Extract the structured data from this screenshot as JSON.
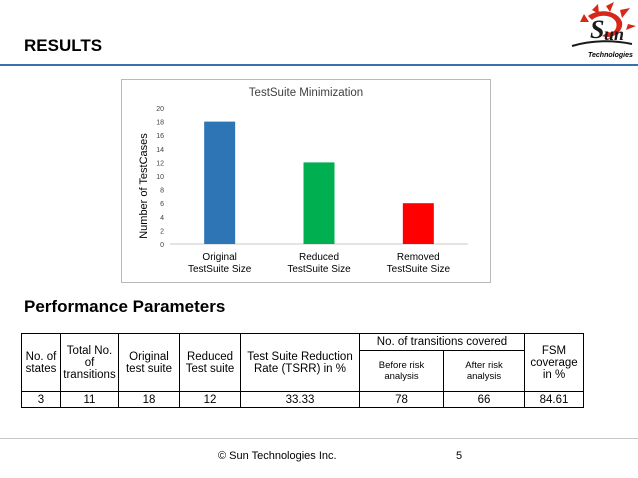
{
  "slide": {
    "title": "RESULTS",
    "section_title": "Performance Parameters",
    "logo_text": "Technologies",
    "footer": "© Sun Technologies Inc.",
    "page_number": "5"
  },
  "chart_data": {
    "type": "bar",
    "title": "TestSuite Minimization",
    "ylabel": "Number of TestCases",
    "xlabel": "",
    "ylim": [
      0,
      20
    ],
    "yticks": [
      0,
      2,
      4,
      6,
      8,
      10,
      12,
      14,
      16,
      18,
      20
    ],
    "grid": false,
    "categories": [
      "Original TestSuite Size",
      "Reduced TestSuite Size",
      "Removed TestSuite Size"
    ],
    "category_lines": [
      [
        "Original",
        "TestSuite Size"
      ],
      [
        "Reduced",
        "TestSuite Size"
      ],
      [
        "Removed",
        "TestSuite Size"
      ]
    ],
    "values": [
      18,
      12,
      6
    ],
    "colors": [
      "#2e75b6",
      "#00b050",
      "#ff0000"
    ]
  },
  "table": {
    "headers": {
      "states": [
        "No. of",
        "states"
      ],
      "transitions": [
        "Total No.",
        "of",
        "transitions"
      ],
      "original": [
        "Original",
        "test suite"
      ],
      "reduced": [
        "Reduced",
        "Test suite"
      ],
      "tsrr": [
        "Test Suite Reduction",
        "Rate (TSRR) in %"
      ],
      "covered_group": "No. of transitions covered",
      "before": [
        "Before risk",
        "analysis"
      ],
      "after": [
        "After risk",
        "analysis"
      ],
      "fsm": [
        "FSM",
        "coverage",
        "in %"
      ]
    },
    "row": [
      "3",
      "11",
      "18",
      "12",
      "33.33",
      "78",
      "66",
      "84.61"
    ]
  }
}
